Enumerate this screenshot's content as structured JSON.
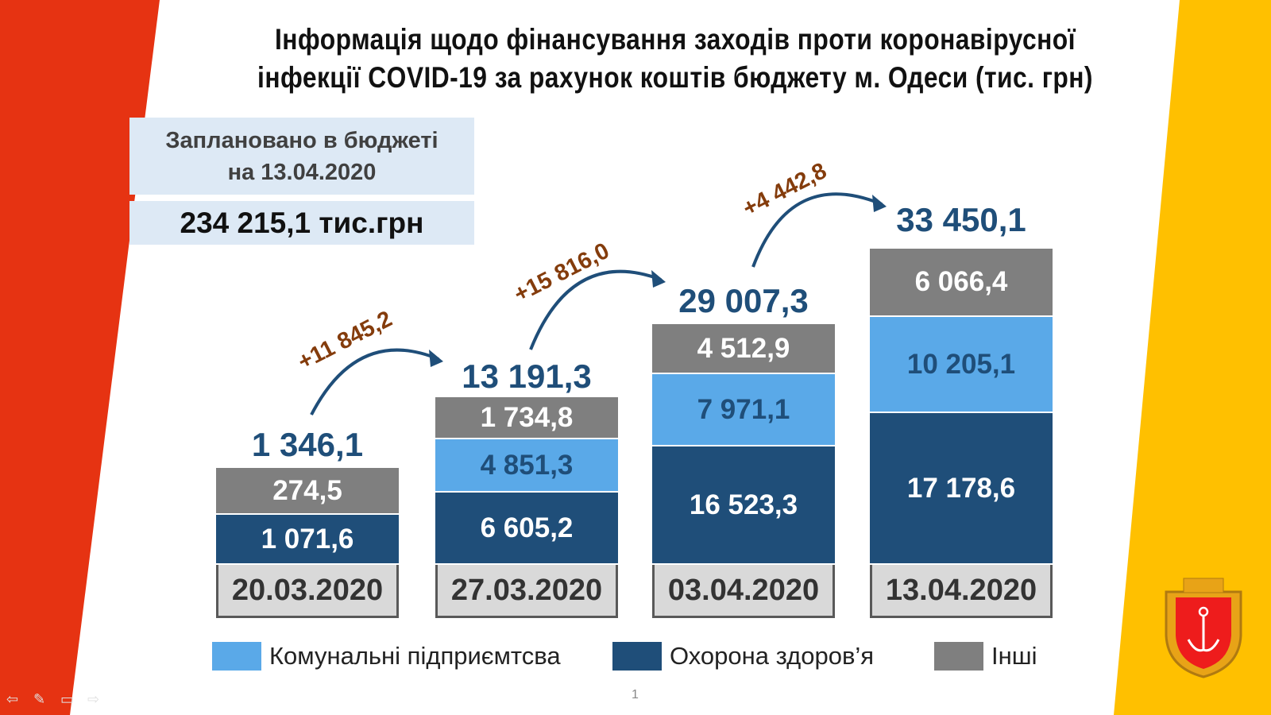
{
  "title_line1": "Інформація щодо фінансування заходів проти коронавірусної",
  "title_line2": "інфекції COVID-19 за рахунок коштів бюджету м. Одеси (тис. грн)",
  "plan_label": "Заплановано в бюджеті на 13.04.2020",
  "plan_value": "234 215,1 тис.грн",
  "page_number": "1",
  "colors": {
    "red": "#e63312",
    "yellow": "#ffc000",
    "dark": "#1f4e79",
    "light": "#5aa9e8",
    "gray": "#7f7f7f"
  },
  "chart_data": {
    "type": "bar",
    "stacked": true,
    "categories": [
      "20.03.2020",
      "27.03.2020",
      "03.04.2020",
      "13.04.2020"
    ],
    "series": [
      {
        "name": "Охорона здоров’я",
        "values": [
          "1 071,6",
          "6 605,2",
          "16 523,3",
          "17 178,6"
        ]
      },
      {
        "name": "Комунальні підприємтсва",
        "values": [
          null,
          "4 851,3",
          "7 971,1",
          "10 205,1"
        ]
      },
      {
        "name": "Інші",
        "values": [
          "274,5",
          "1 734,8",
          "4 512,9",
          "6 066,4"
        ]
      }
    ],
    "totals": [
      "1 346,1",
      "13 191,3",
      "29 007,3",
      "33 450,1"
    ],
    "increments": [
      "+11 845,2",
      "+15 816,0",
      "+4 442,8"
    ],
    "legend": [
      "Комунальні підприємтсва",
      "Охорона здоров’я",
      "Інші"
    ],
    "legend_position": "bottom"
  }
}
